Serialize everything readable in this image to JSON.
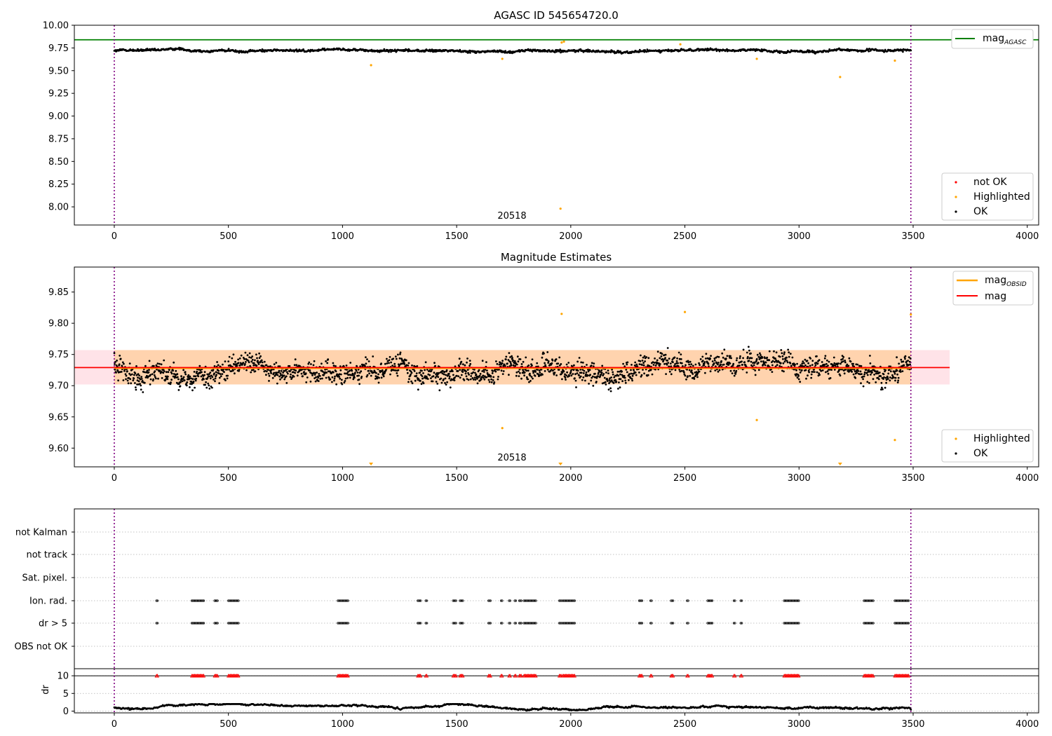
{
  "chart_data": [
    {
      "type": "scatter",
      "title": "AGASC ID 545654720.0",
      "xlim": [
        -175,
        4050
      ],
      "ylim": [
        7.8,
        10.0
      ],
      "xticks": [
        0,
        500,
        1000,
        1500,
        2000,
        2500,
        3000,
        3500,
        4000
      ],
      "yticks": [
        8.0,
        8.25,
        8.5,
        8.75,
        9.0,
        9.25,
        9.5,
        9.75,
        10.0
      ],
      "ytick_labels": [
        "8.00",
        "8.25",
        "8.50",
        "8.75",
        "9.00",
        "9.25",
        "9.50",
        "9.75",
        "10.00"
      ],
      "grid": false,
      "vlines": [
        0,
        3490
      ],
      "hline": {
        "name": "mag",
        "subscript": "AGASC",
        "y": 9.84,
        "color": "#008000"
      },
      "obsid_label": {
        "text": "20518",
        "x": 1745
      },
      "ok_series": {
        "name": "OK",
        "color": "#000000",
        "x_range": [
          0,
          3490
        ],
        "baseline": 9.72
      },
      "highlighted": {
        "name": "Highlighted",
        "color": "#ffa500",
        "points": [
          [
            1125,
            9.56
          ],
          [
            1700,
            9.63
          ],
          [
            1955,
            7.98
          ],
          [
            1960,
            9.81
          ],
          [
            1970,
            9.82
          ],
          [
            2480,
            9.79
          ],
          [
            2815,
            9.63
          ],
          [
            3180,
            9.43
          ],
          [
            3420,
            9.61
          ]
        ]
      },
      "not_ok": {
        "name": "not OK",
        "color": "#ff0000",
        "points": []
      },
      "legend_top": "top-right",
      "legend_bottom": "bottom-right"
    },
    {
      "type": "scatter",
      "title": "Magnitude Estimates",
      "xlim": [
        -175,
        4050
      ],
      "ylim": [
        9.57,
        9.89
      ],
      "xticks": [
        0,
        500,
        1000,
        1500,
        2000,
        2500,
        3000,
        3500,
        4000
      ],
      "yticks": [
        9.6,
        9.65,
        9.7,
        9.75,
        9.8,
        9.85
      ],
      "ytick_labels": [
        "9.60",
        "9.65",
        "9.70",
        "9.75",
        "9.80",
        "9.85"
      ],
      "grid": false,
      "vlines": [
        0,
        3490
      ],
      "mag_line": {
        "name": "mag",
        "y": 9.729,
        "x_range": [
          -175,
          3660
        ],
        "band": [
          9.702,
          9.757
        ],
        "color": "#ff0000"
      },
      "mag_obsid": {
        "name": "mag",
        "subscript": "OBSID",
        "y": 9.728,
        "x_range": [
          0,
          3490
        ],
        "band": [
          9.702,
          9.757
        ],
        "color": "#ffa500"
      },
      "obsid_label": {
        "text": "20518",
        "x": 1745
      },
      "ok_series": {
        "name": "OK",
        "color": "#000000",
        "x_range": [
          0,
          3490
        ],
        "baseline": 9.73
      },
      "highlighted": {
        "name": "Highlighted",
        "color": "#ffa500",
        "points": [
          [
            1700,
            9.632
          ],
          [
            1960,
            9.815
          ],
          [
            2500,
            9.818
          ],
          [
            2815,
            9.645
          ],
          [
            3420,
            9.613
          ],
          [
            3490,
            9.814
          ]
        ]
      },
      "offscale_markers": [
        1125,
        1955,
        3180
      ],
      "legend_top": "top-right",
      "legend_bottom": "bottom-right"
    },
    {
      "type": "scatter",
      "xlim": [
        -175,
        4050
      ],
      "flag_rows": [
        "not Kalman",
        "not track",
        "Sat. pixel.",
        "Ion. rad.",
        "dr > 5",
        "OBS not OK"
      ],
      "flag_intervals": [
        [
          185,
          190
        ],
        [
          340,
          395
        ],
        [
          440,
          455
        ],
        [
          500,
          545
        ],
        [
          980,
          1025
        ],
        [
          1330,
          1345
        ],
        [
          1365,
          1370
        ],
        [
          1485,
          1500
        ],
        [
          1515,
          1530
        ],
        [
          1640,
          1650
        ],
        [
          1695,
          1700
        ],
        [
          1730,
          1735
        ],
        [
          1755,
          1760
        ],
        [
          1775,
          1785
        ],
        [
          1795,
          1850
        ],
        [
          1950,
          1960
        ],
        [
          1965,
          2020
        ],
        [
          2300,
          2315
        ],
        [
          2350,
          2355
        ],
        [
          2440,
          2450
        ],
        [
          2510,
          2515
        ],
        [
          2600,
          2620
        ],
        [
          2715,
          2720
        ],
        [
          2745,
          2750
        ],
        [
          2935,
          3000
        ],
        [
          3285,
          3325
        ],
        [
          3420,
          3480
        ]
      ],
      "flag_rows_marked": [
        "Ion. rad.",
        "dr > 5"
      ],
      "vlines": [
        0,
        3490
      ]
    },
    {
      "type": "scatter",
      "ylabel": "dr",
      "xlim": [
        -175,
        4050
      ],
      "ylim": [
        -0.5,
        12
      ],
      "xticks": [
        0,
        500,
        1000,
        1500,
        2000,
        2500,
        3000,
        3500,
        4000
      ],
      "yticks": [
        0,
        5,
        10
      ],
      "ytick_labels": [
        "0",
        "5",
        "10"
      ],
      "hline": 10,
      "dr_series": {
        "name": "dr",
        "color": "#000000",
        "x_range": [
          0,
          3490
        ],
        "baseline": 1.0
      },
      "clipped_markers": {
        "color": "#ff0000",
        "y": 10
      },
      "vlines": [
        0,
        3490
      ]
    }
  ]
}
